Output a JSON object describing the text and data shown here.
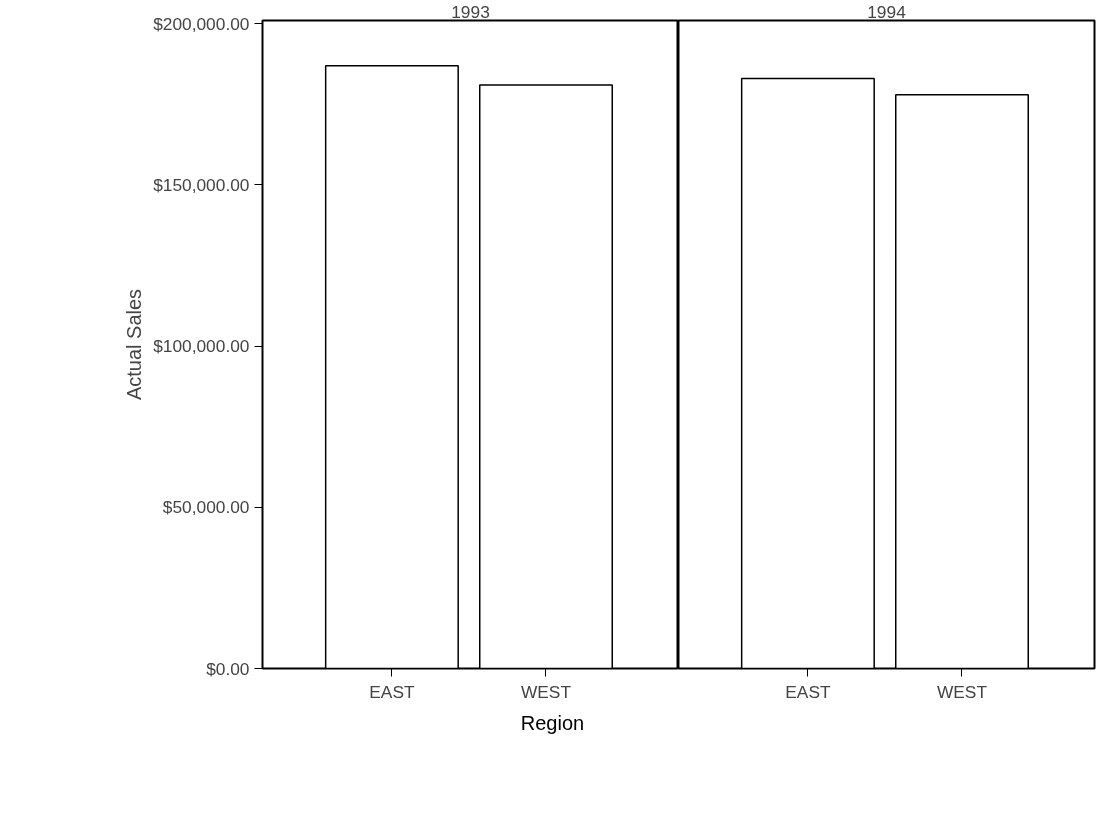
{
  "chart_data": [
    {
      "type": "bar",
      "title": "1993",
      "xlabel": "Region",
      "ylabel": "Actual Sales",
      "categories": [
        "EAST",
        "WEST"
      ],
      "values": [
        187000,
        181000
      ],
      "color": "#ffffff",
      "ylim": [
        0,
        201000
      ],
      "yticks": [
        {
          "value": 0,
          "label": "$0.00"
        },
        {
          "value": 50000,
          "label": "$50,000.00"
        },
        {
          "value": 100000,
          "label": "$100,000.00"
        },
        {
          "value": 150000,
          "label": "$150,000.00"
        },
        {
          "value": 200000,
          "label": "$200,000.00"
        }
      ],
      "grid": false
    },
    {
      "type": "bar",
      "title": "1994",
      "categories": [
        "EAST",
        "WEST"
      ],
      "values": [
        183000,
        178000
      ],
      "color": "#ffffff",
      "ylim": [
        0,
        201000
      ],
      "grid": false,
      "tick_labels": "x"
    }
  ]
}
